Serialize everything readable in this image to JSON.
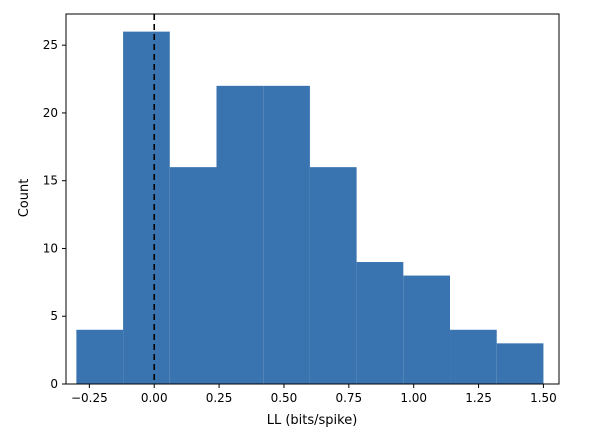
{
  "colors": {
    "bar_fill": "#3a74b0",
    "reference_line": "#000000",
    "axes": "#000000",
    "background": "#ffffff"
  },
  "chart_data": {
    "type": "histogram",
    "title": "",
    "xlabel": "LL (bits/spike)",
    "ylabel": "Count",
    "xlim": [
      -0.34,
      1.56
    ],
    "ylim": [
      0,
      27.3
    ],
    "bin_edges": [
      -0.3,
      -0.12,
      0.06,
      0.24,
      0.42,
      0.6,
      0.78,
      0.96,
      1.14,
      1.32,
      1.5
    ],
    "counts": [
      4,
      26,
      16,
      22,
      22,
      16,
      9,
      8,
      4,
      3
    ],
    "x_ticks": [
      -0.25,
      0.0,
      0.25,
      0.5,
      0.75,
      1.0,
      1.25,
      1.5
    ],
    "x_tick_labels": [
      "−0.25",
      "0.00",
      "0.25",
      "0.50",
      "0.75",
      "1.00",
      "1.25",
      "1.50"
    ],
    "y_ticks": [
      0,
      5,
      10,
      15,
      20,
      25
    ],
    "y_tick_labels": [
      "0",
      "5",
      "10",
      "15",
      "20",
      "25"
    ],
    "reference_line": {
      "x": 0.0,
      "style": "dashed",
      "color": "#000000"
    },
    "grid": false,
    "legend": null
  }
}
